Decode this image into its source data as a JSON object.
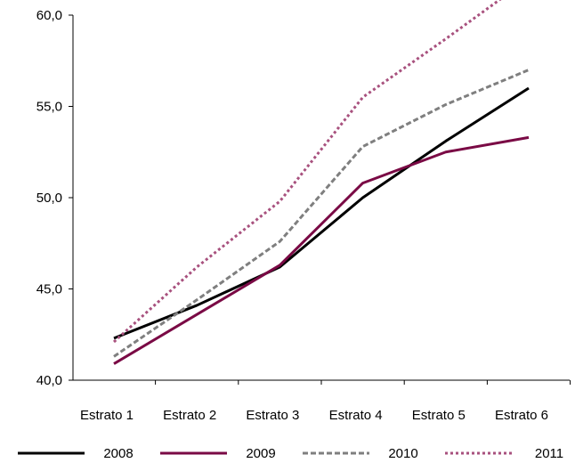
{
  "chart_data": {
    "type": "line",
    "title": "",
    "xlabel": "",
    "ylabel": "",
    "categories": [
      "Estrato 1",
      "Estrato 2",
      "Estrato 3",
      "Estrato 4",
      "Estrato 5",
      "Estrato 6"
    ],
    "ylim": [
      40.0,
      60.0
    ],
    "yticks": [
      "40,0",
      "45,0",
      "50,0",
      "55,0",
      "60,0"
    ],
    "ytick_values": [
      40,
      45,
      50,
      55,
      60
    ],
    "grid": false,
    "legend_position": "bottom",
    "series": [
      {
        "name": "2008",
        "values": [
          42.3,
          44.1,
          46.2,
          50.0,
          53.1,
          56.0
        ],
        "color": "#000000",
        "style": "solid"
      },
      {
        "name": "2009",
        "values": [
          40.9,
          43.6,
          46.3,
          50.8,
          52.5,
          53.3
        ],
        "color": "#7a0a45",
        "style": "solid"
      },
      {
        "name": "2010",
        "values": [
          41.3,
          44.4,
          47.6,
          52.8,
          55.1,
          57.0
        ],
        "color": "#7f7f7f",
        "style": "dashed"
      },
      {
        "name": "2011",
        "values": [
          42.1,
          46.2,
          49.8,
          55.5,
          58.7,
          62.0
        ],
        "color": "#a8517e",
        "style": "dotted"
      }
    ]
  }
}
